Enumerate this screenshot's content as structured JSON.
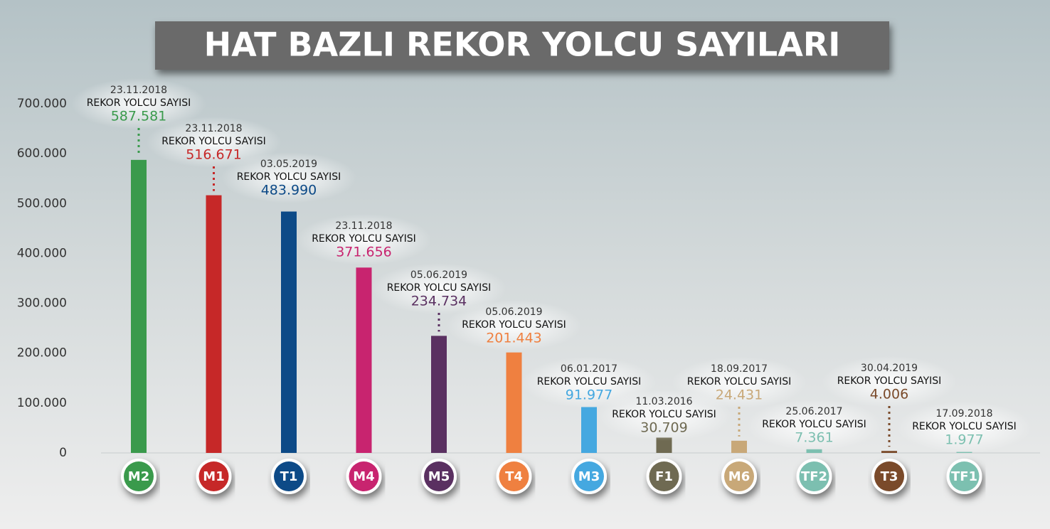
{
  "chart_data": {
    "type": "bar",
    "title": "HAT BAZLI REKOR YOLCU SAYILARI",
    "categories": [
      "M2",
      "M1",
      "T1",
      "M4",
      "M5",
      "T4",
      "M3",
      "F1",
      "M6",
      "TF2",
      "T3",
      "TF1"
    ],
    "values": [
      587581,
      516671,
      483990,
      371656,
      234734,
      201443,
      91977,
      30709,
      24431,
      7361,
      4006,
      1977
    ],
    "value_labels": [
      "587.581",
      "516.671",
      "483.990",
      "371.656",
      "234.734",
      "201.443",
      "91.977",
      "30.709",
      "24.431",
      "7.361",
      "4.006",
      "1.977"
    ],
    "dates": [
      "23.11.2018",
      "23.11.2018",
      "03.05.2019",
      "23.11.2018",
      "05.06.2019",
      "05.06.2019",
      "06.01.2017",
      "11.03.2016",
      "18.09.2017",
      "25.06.2017",
      "30.04.2019",
      "17.09.2018"
    ],
    "value_caption": "REKOR YOLCU SAYISI",
    "colors": [
      "#3a9a4c",
      "#c62828",
      "#0d4a87",
      "#c8246f",
      "#5a3061",
      "#ef8040",
      "#45a8e0",
      "#6f6a52",
      "#c8a878",
      "#7cbfb0",
      "#7a4a2a",
      "#7cc0b0"
    ],
    "ylim": [
      0,
      700000
    ],
    "yticks": [
      0,
      {
        "value": 100000,
        "label": "100.000"
      },
      {
        "value": 200000,
        "label": "200.000"
      },
      {
        "value": 300000,
        "label": "300.000"
      },
      {
        "value": 400000,
        "label": "400.000"
      },
      {
        "value": 500000,
        "label": "500.000"
      },
      {
        "value": 600000,
        "label": "600.000"
      },
      {
        "value": 700000,
        "label": "700.000"
      }
    ],
    "grid": false
  }
}
